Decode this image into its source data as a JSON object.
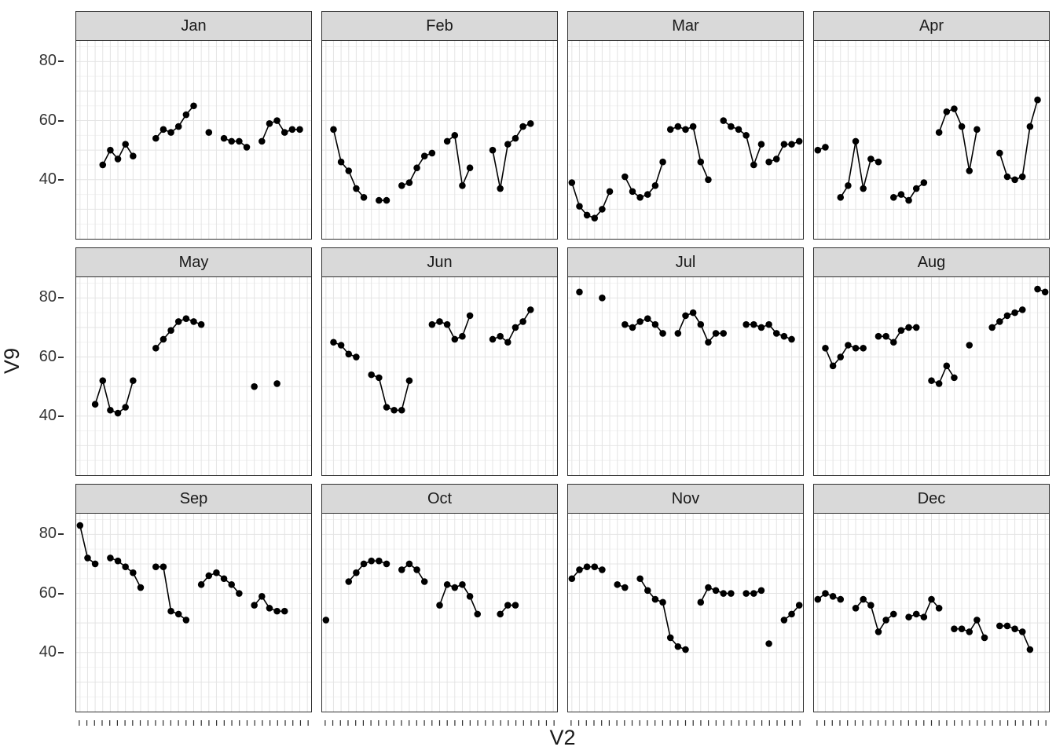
{
  "chart_data": {
    "type": "line",
    "title": "",
    "xlabel": "V2",
    "ylabel": "V9",
    "ylim": [
      20,
      87
    ],
    "yticks": [
      40,
      60,
      80
    ],
    "x_range_days": 31,
    "grid": "on",
    "legend": "none",
    "point_color": "#000000",
    "line_color": "#000000",
    "strip_bg": "#d9d9d9",
    "panel_border": "#2f2f2f",
    "gridline_major": "#e4e4e4",
    "gridline_minor": "#f2f2f2",
    "facets": [
      {
        "label": "Jan",
        "segments": [
          {
            "start_day": 4,
            "values": [
              45,
              50,
              47,
              52,
              48
            ]
          },
          {
            "start_day": 11,
            "values": [
              54,
              57,
              56,
              58,
              62,
              65
            ]
          },
          {
            "start_day": 18,
            "values": [
              56
            ]
          },
          {
            "start_day": 20,
            "values": [
              54,
              53,
              53,
              51
            ]
          },
          {
            "start_day": 25,
            "values": [
              53,
              59,
              60,
              56,
              57,
              57
            ]
          }
        ]
      },
      {
        "label": "Feb",
        "segments": [
          {
            "start_day": 2,
            "values": [
              57,
              46,
              43,
              37,
              34
            ]
          },
          {
            "start_day": 8,
            "values": [
              33,
              33
            ]
          },
          {
            "start_day": 11,
            "values": [
              38,
              39,
              44,
              48,
              49
            ]
          },
          {
            "start_day": 17,
            "values": [
              53,
              55,
              38,
              44
            ]
          },
          {
            "start_day": 23,
            "values": [
              50,
              37,
              52,
              54,
              58,
              59
            ]
          }
        ]
      },
      {
        "label": "Mar",
        "segments": [
          {
            "start_day": 1,
            "values": [
              39,
              31,
              28,
              27,
              30,
              36
            ]
          },
          {
            "start_day": 8,
            "values": [
              41,
              36,
              34,
              35,
              38,
              46
            ]
          },
          {
            "start_day": 14,
            "values": [
              57,
              58,
              57,
              58,
              46,
              40
            ]
          },
          {
            "start_day": 21,
            "values": [
              60,
              58,
              57,
              55,
              45,
              52
            ]
          },
          {
            "start_day": 27,
            "values": [
              46,
              47,
              52,
              52,
              53
            ]
          }
        ]
      },
      {
        "label": "Apr",
        "segments": [
          {
            "start_day": 1,
            "values": [
              50,
              51
            ]
          },
          {
            "start_day": 4,
            "values": [
              34,
              38,
              53,
              37,
              47,
              46
            ]
          },
          {
            "start_day": 11,
            "values": [
              34,
              35,
              33,
              37,
              39
            ]
          },
          {
            "start_day": 17,
            "values": [
              56,
              63,
              64,
              58,
              43,
              57
            ]
          },
          {
            "start_day": 25,
            "values": [
              49,
              41,
              40,
              41,
              58,
              67
            ]
          }
        ]
      },
      {
        "label": "May",
        "segments": [
          {
            "start_day": 3,
            "values": [
              44,
              52,
              42,
              41,
              43,
              52
            ]
          },
          {
            "start_day": 11,
            "values": [
              63,
              66,
              69,
              72,
              73,
              72,
              71
            ]
          },
          {
            "start_day": 24,
            "values": [
              50
            ]
          },
          {
            "start_day": 27,
            "values": [
              51
            ]
          }
        ]
      },
      {
        "label": "Jun",
        "segments": [
          {
            "start_day": 2,
            "values": [
              65,
              64,
              61,
              60
            ]
          },
          {
            "start_day": 7,
            "values": [
              54,
              53,
              43,
              42,
              42,
              52
            ]
          },
          {
            "start_day": 15,
            "values": [
              71,
              72,
              71,
              66,
              67,
              74
            ]
          },
          {
            "start_day": 23,
            "values": [
              66,
              67,
              65,
              70,
              72,
              76
            ]
          }
        ]
      },
      {
        "label": "Jul",
        "segments": [
          {
            "start_day": 2,
            "values": [
              82
            ]
          },
          {
            "start_day": 5,
            "values": [
              80
            ]
          },
          {
            "start_day": 8,
            "values": [
              71,
              70,
              72,
              73,
              71,
              68
            ]
          },
          {
            "start_day": 15,
            "values": [
              68,
              74,
              75,
              71,
              65,
              68,
              68
            ]
          },
          {
            "start_day": 24,
            "values": [
              71,
              71,
              70,
              71,
              68,
              67,
              66
            ]
          }
        ]
      },
      {
        "label": "Aug",
        "segments": [
          {
            "start_day": 2,
            "values": [
              63,
              57,
              60,
              64,
              63,
              63
            ]
          },
          {
            "start_day": 9,
            "values": [
              67,
              67,
              65,
              69,
              70,
              70
            ]
          },
          {
            "start_day": 16,
            "values": [
              52,
              51,
              57,
              53
            ]
          },
          {
            "start_day": 21,
            "values": [
              64
            ]
          },
          {
            "start_day": 24,
            "values": [
              70,
              72,
              74,
              75,
              76
            ]
          },
          {
            "start_day": 30,
            "values": [
              83,
              82
            ]
          }
        ]
      },
      {
        "label": "Sep",
        "segments": [
          {
            "start_day": 1,
            "values": [
              83,
              72,
              70
            ]
          },
          {
            "start_day": 5,
            "values": [
              72,
              71,
              69,
              67,
              62
            ]
          },
          {
            "start_day": 11,
            "values": [
              69,
              69,
              54,
              53,
              51
            ]
          },
          {
            "start_day": 17,
            "values": [
              63,
              66,
              67,
              65,
              63,
              60
            ]
          },
          {
            "start_day": 24,
            "values": [
              56,
              59,
              55,
              54,
              54
            ]
          }
        ]
      },
      {
        "label": "Oct",
        "segments": [
          {
            "start_day": 1,
            "values": [
              51
            ]
          },
          {
            "start_day": 4,
            "values": [
              64,
              67,
              70,
              71,
              71,
              70
            ]
          },
          {
            "start_day": 11,
            "values": [
              68,
              70,
              68,
              64
            ]
          },
          {
            "start_day": 16,
            "values": [
              56,
              63,
              62,
              63,
              59,
              53
            ]
          },
          {
            "start_day": 24,
            "values": [
              53,
              56,
              56
            ]
          }
        ]
      },
      {
        "label": "Nov",
        "segments": [
          {
            "start_day": 1,
            "values": [
              65,
              68,
              69,
              69,
              68
            ]
          },
          {
            "start_day": 7,
            "values": [
              63,
              62
            ]
          },
          {
            "start_day": 10,
            "values": [
              65,
              61,
              58,
              57,
              45,
              42,
              41
            ]
          },
          {
            "start_day": 18,
            "values": [
              57,
              62,
              61,
              60,
              60
            ]
          },
          {
            "start_day": 24,
            "values": [
              60,
              60,
              61
            ]
          },
          {
            "start_day": 27,
            "values": [
              43
            ]
          },
          {
            "start_day": 29,
            "values": [
              51,
              53,
              56
            ]
          }
        ]
      },
      {
        "label": "Dec",
        "segments": [
          {
            "start_day": 1,
            "values": [
              58,
              60,
              59,
              58
            ]
          },
          {
            "start_day": 6,
            "values": [
              55,
              58,
              56,
              47,
              51,
              53
            ]
          },
          {
            "start_day": 13,
            "values": [
              52,
              53,
              52,
              58,
              55
            ]
          },
          {
            "start_day": 19,
            "values": [
              48,
              48,
              47,
              51,
              45
            ]
          },
          {
            "start_day": 25,
            "values": [
              49,
              49,
              48,
              47,
              41
            ]
          }
        ]
      }
    ]
  }
}
